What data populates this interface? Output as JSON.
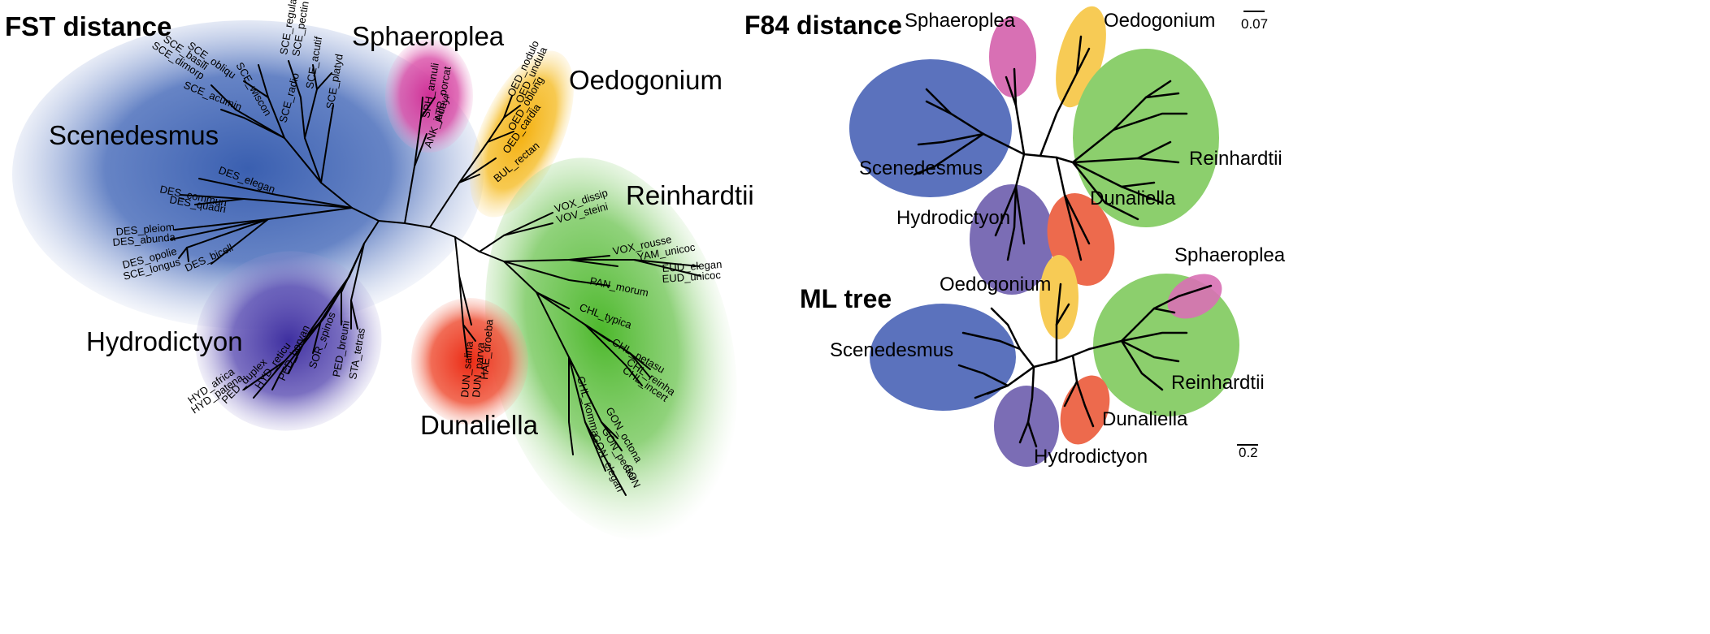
{
  "panels": {
    "fst": {
      "title": "FST distance",
      "clades": {
        "scenedesmus": "Scenedesmus",
        "sphaeroplea": "Sphaeroplea",
        "oedogonium": "Oedogonium",
        "reinhardtii": "Reinhardtii",
        "hydrodictyon": "Hydrodictyon",
        "dunaliella": "Dunaliella"
      },
      "leaves": {
        "sce_regula": "SCE_regula",
        "sce_pectin": "SCE_pectin",
        "sce_obliqu": "SCE_obliqu",
        "sce_basili": "SCE_basili",
        "sce_dimorp": "SCE_dimorp",
        "sce_acutif": "SCE_acutif",
        "sce_radio": "SCE_radio",
        "sce_platyd": "SCE_platyd",
        "sce_wiscon": "SCE_wiscon",
        "sce_acumin": "SCE_acumin",
        "des_elegan": "DES_elegan",
        "des_commun": "DES_commun",
        "des_quadri": "DES_quadri",
        "des_pleiom": "DES_pleiom",
        "des_abunda": "DES_abunda",
        "des_opolie": "DES_opolie",
        "sce_longus": "SCE_longus",
        "des_bicell": "DES_bicell",
        "sph_annuli": "SPH_annuli",
        "atr_porcat": "ATR_porcat",
        "ank_judayi": "ANK_judayi",
        "oed_nodulo": "OED_nodulo",
        "oed_undula": "OED_undula",
        "oed_oblong": "OED_oblong",
        "oed_cardia": "OED_cardia",
        "bul_rectan": "BUL_rectan",
        "vox_dissip": "VOX_dissip",
        "vov_steini": "VOV_steini",
        "vox_rousse": "VOX_rousse",
        "yam_unicoc": "YAM_unicoc",
        "eud_elegan": "EUD_elegan",
        "eud_unicoc": "EUD_unicoc",
        "pan_morum": "PAN_morum",
        "chl_typica": "CHL_typica",
        "chl_petasu": "CHL_petasu",
        "chl_reinha": "CHL_reinha",
        "chl_incert": "CHL_incert",
        "gon_octona": "GON_octona",
        "gon_pector": "GON_pector",
        "gon_elegan": "GON_elegan",
        "gon_sp": "GON",
        "chl_komma": "CHL_komma",
        "dun_salina": "DUN_salina",
        "dun_parva": "DUN_parva",
        "hae_droeba": "HAE_droeba",
        "hyd_africa": "HYD_africa",
        "hyd_patena": "HYD_patena",
        "ped_duplex": "PED_duplex",
        "hyd_reticu": "HYD_reticu",
        "ped_boryan": "PED_boryan",
        "sor_spinos": "SOR_spinos",
        "ped_breuni": "PED_breuni",
        "sta_tetras": "STA_tetras"
      }
    },
    "f84": {
      "title": "F84 distance",
      "scale": "0.07",
      "clades": {
        "sphaeroplea": "Sphaeroplea",
        "oedogonium": "Oedogonium",
        "scenedesmus": "Scenedesmus",
        "reinhardtii": "Reinhardtii",
        "hydrodictyon": "Hydrodictyon",
        "dunaliella": "Dunaliella"
      }
    },
    "ml": {
      "title": "ML tree",
      "scale": "0.2",
      "clades": {
        "sphaeroplea": "Sphaeroplea",
        "oedogonium": "Oedogonium",
        "scenedesmus": "Scenedesmus",
        "reinhardtii": "Reinhardtii",
        "dunaliella": "Dunaliella",
        "hydrodictyon": "Hydrodictyon"
      }
    }
  },
  "colors": {
    "scenedesmus": "#3a5fb0",
    "hydrodictyon": "#4a3aa8",
    "sphaeroplea": "#d63aa0",
    "oedogonium": "#f5b818",
    "reinhardtii": "#5cbf3c",
    "dunaliella": "#ee3a24",
    "scen_small": "#5b72bd",
    "hydro_small": "#7b6db5",
    "sph_small": "#d870b4",
    "oed_small": "#f7cb55",
    "rein_small": "#8ccf6d",
    "dun_small": "#ed6a4d"
  },
  "icons": [
    "scale-bar-icon"
  ]
}
